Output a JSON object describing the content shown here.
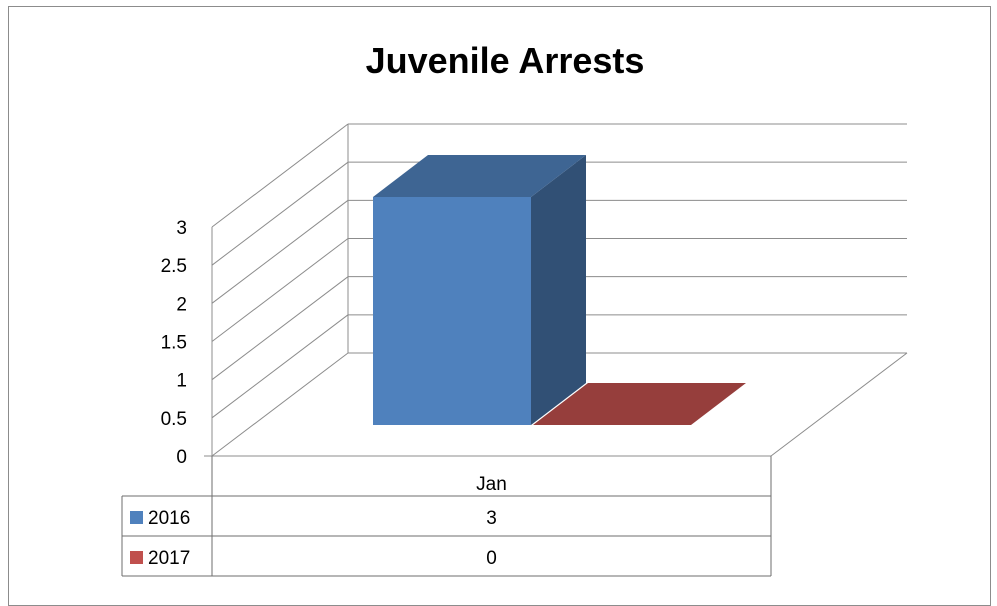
{
  "chart_data": {
    "type": "bar",
    "style": "3d-column-with-data-table",
    "title": "Juvenile Arrests",
    "categories": [
      "Jan"
    ],
    "series": [
      {
        "name": "2016",
        "values": [
          3
        ],
        "color": "#4f81bd"
      },
      {
        "name": "2017",
        "values": [
          0
        ],
        "color": "#c0504d"
      }
    ],
    "ylim": [
      0,
      3
    ],
    "yticks": [
      "0",
      "0.5",
      "1",
      "1.5",
      "2",
      "2.5",
      "3"
    ],
    "grid": true,
    "legend": "data-table"
  },
  "table": {
    "rows": [
      {
        "label": "2016",
        "value": "3"
      },
      {
        "label": "2017",
        "value": "0"
      }
    ]
  }
}
